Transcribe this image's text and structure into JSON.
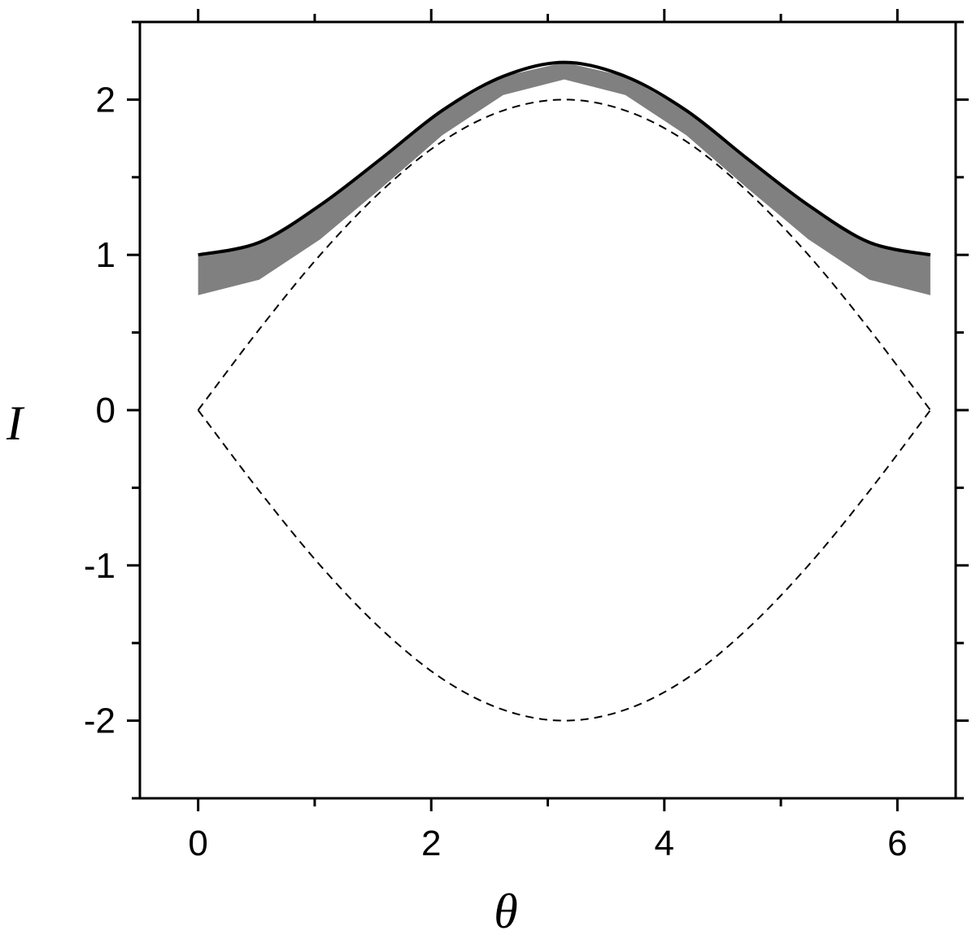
{
  "chart_data": {
    "type": "line",
    "title": "",
    "xlabel": "θ",
    "ylabel": "I",
    "xlim": [
      -0.5,
      6.5
    ],
    "ylim": [
      -2.5,
      2.5
    ],
    "x_ticks_major": [
      0,
      2,
      4,
      6
    ],
    "x_ticks_minor": [
      1,
      3,
      5
    ],
    "y_ticks_major": [
      -2,
      -1,
      0,
      1,
      2
    ],
    "y_ticks_minor": [
      -2.5,
      -1.5,
      -0.5,
      0.5,
      1.5,
      2.5
    ],
    "x_tick_labels": [
      "0",
      "2",
      "4",
      "6"
    ],
    "y_tick_labels": [
      "-2",
      "-1",
      "0",
      "1",
      "2"
    ],
    "grid": false,
    "legend": "none",
    "series": [
      {
        "style": "solid",
        "color": "#000000",
        "x": [
          0,
          0.524,
          1.047,
          1.571,
          2.094,
          2.618,
          3.142,
          3.665,
          4.189,
          4.712,
          5.236,
          5.76,
          6.283
        ],
        "y": [
          1.0,
          1.08,
          1.32,
          1.62,
          1.93,
          2.15,
          2.24,
          2.15,
          1.93,
          1.62,
          1.32,
          1.08,
          1.0
        ]
      },
      {
        "style": "dashed",
        "color": "#000000",
        "x": [
          0,
          0.524,
          1.047,
          1.571,
          2.094,
          2.618,
          3.142,
          3.665,
          4.189,
          4.712,
          5.236,
          5.76,
          6.283
        ],
        "y": [
          0.0,
          0.52,
          1.0,
          1.41,
          1.73,
          1.93,
          2.0,
          1.93,
          1.73,
          1.41,
          1.0,
          0.52,
          0.0
        ]
      },
      {
        "style": "dashed",
        "color": "#000000",
        "x": [
          0,
          0.524,
          1.047,
          1.571,
          2.094,
          2.618,
          3.142,
          3.665,
          4.189,
          4.712,
          5.236,
          5.76,
          6.283
        ],
        "y": [
          0.0,
          -0.52,
          -1.0,
          -1.41,
          -1.73,
          -1.93,
          -2.0,
          -1.93,
          -1.73,
          -1.41,
          -1.0,
          -0.52,
          0.0
        ]
      }
    ],
    "bands": [
      {
        "color": "#808080",
        "x": [
          0,
          0.524,
          1.047,
          1.571,
          2.094,
          2.618,
          3.142,
          3.665,
          4.189,
          4.712,
          5.236,
          5.76,
          6.283
        ],
        "y_upper": [
          1.0,
          1.08,
          1.32,
          1.62,
          1.93,
          2.15,
          2.24,
          2.15,
          1.93,
          1.62,
          1.32,
          1.08,
          1.0
        ],
        "y_lower": [
          0.74,
          0.84,
          1.1,
          1.43,
          1.77,
          2.03,
          2.13,
          2.03,
          1.77,
          1.43,
          1.1,
          0.84,
          0.74
        ]
      }
    ]
  }
}
